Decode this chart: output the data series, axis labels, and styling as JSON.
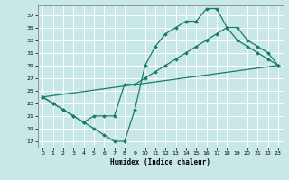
{
  "xlabel": "Humidex (Indice chaleur)",
  "bg_color": "#c8e8e8",
  "line_color": "#1a7a6a",
  "xlim": [
    -0.5,
    23.5
  ],
  "ylim": [
    16,
    38.5
  ],
  "xticks": [
    0,
    1,
    2,
    3,
    4,
    5,
    6,
    7,
    8,
    9,
    10,
    11,
    12,
    13,
    14,
    15,
    16,
    17,
    18,
    19,
    20,
    21,
    22,
    23
  ],
  "yticks": [
    17,
    19,
    21,
    23,
    25,
    27,
    29,
    31,
    33,
    35,
    37
  ],
  "line1_x": [
    0,
    1,
    2,
    3,
    4,
    5,
    6,
    7,
    8,
    9,
    10,
    11,
    12,
    13,
    14,
    15,
    16,
    17,
    18,
    19,
    20,
    21,
    22,
    23
  ],
  "line1_y": [
    24,
    23,
    22,
    21,
    20,
    19,
    18,
    17,
    17,
    22,
    29,
    32,
    34,
    35,
    36,
    36,
    38,
    38,
    35,
    33,
    32,
    31,
    30,
    29
  ],
  "line2_x": [
    0,
    1,
    2,
    3,
    4,
    5,
    6,
    7,
    8,
    9,
    10,
    11,
    12,
    13,
    14,
    15,
    16,
    17,
    18,
    19,
    20,
    21,
    22,
    23
  ],
  "line2_y": [
    24,
    23,
    22,
    21,
    20,
    21,
    21,
    21,
    26,
    26,
    27,
    28,
    29,
    30,
    31,
    32,
    33,
    34,
    35,
    35,
    33,
    32,
    31,
    29
  ],
  "line3_x": [
    0,
    23
  ],
  "line3_y": [
    24,
    29
  ]
}
